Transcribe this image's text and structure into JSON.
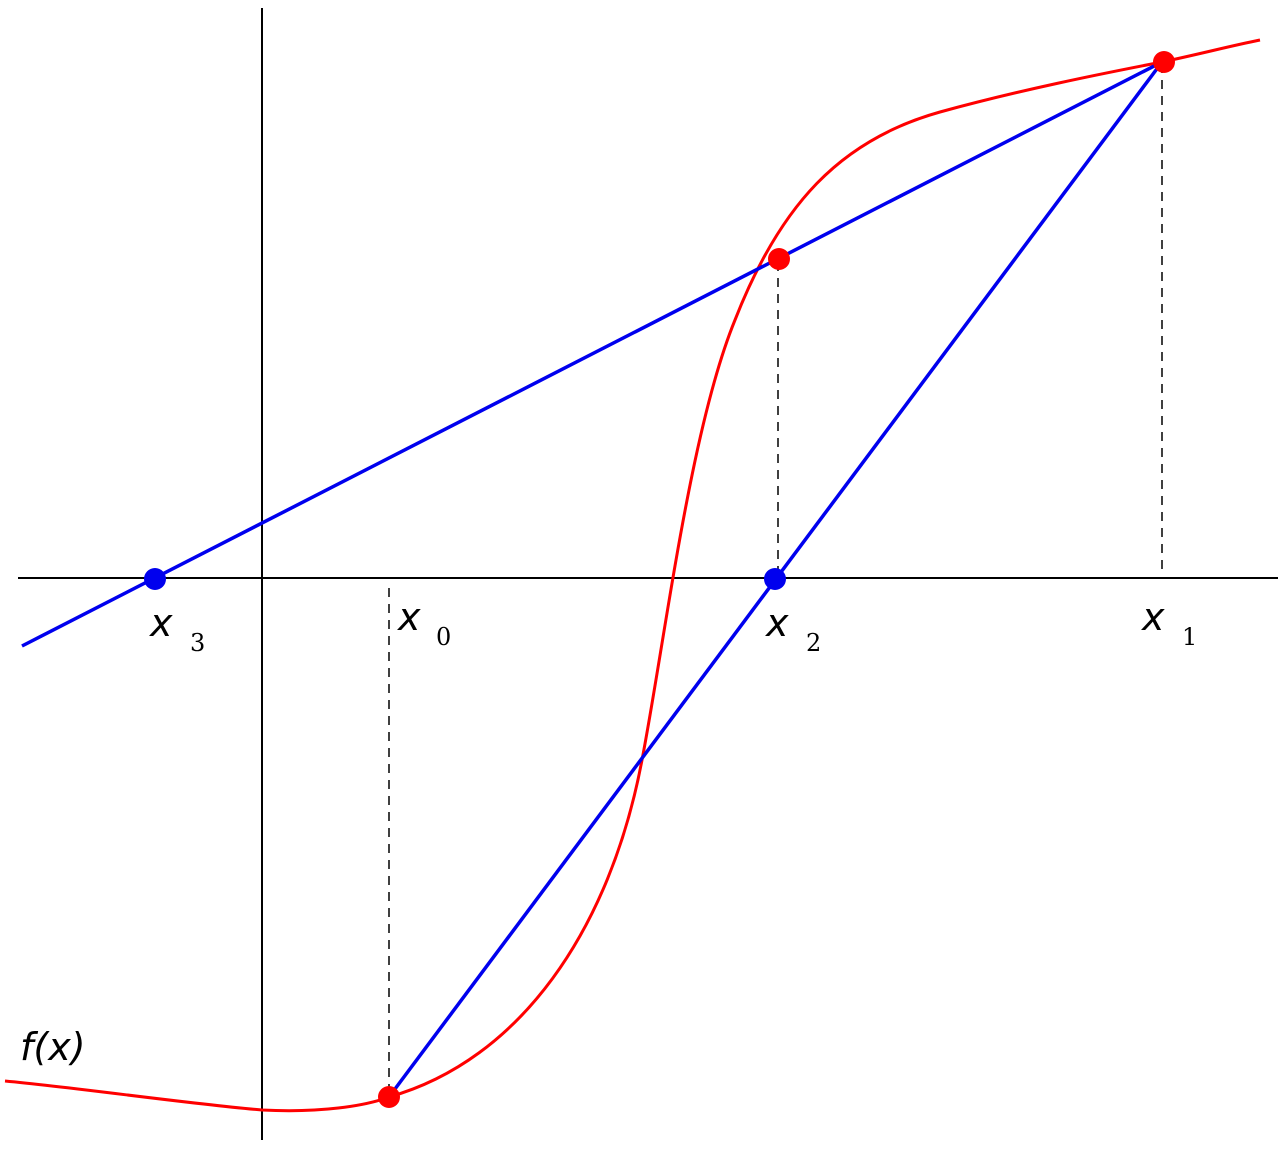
{
  "figure": {
    "function_label": "f(x)",
    "x_symbol": "x",
    "points": [
      {
        "symbol": "x",
        "subscript": "0",
        "marker_color": "#ff0000"
      },
      {
        "symbol": "x",
        "subscript": "1",
        "marker_color": "#ff0000"
      },
      {
        "symbol": "x",
        "subscript": "2",
        "marker_color": "#0000ee"
      },
      {
        "symbol": "x",
        "subscript": "3",
        "marker_color": "#0000ee"
      }
    ],
    "colors": {
      "curve": "#ff0000",
      "secant_lines": "#0000ee",
      "axes": "#000000",
      "function_point": "#ff0000",
      "root_estimate": "#0000ee"
    }
  }
}
